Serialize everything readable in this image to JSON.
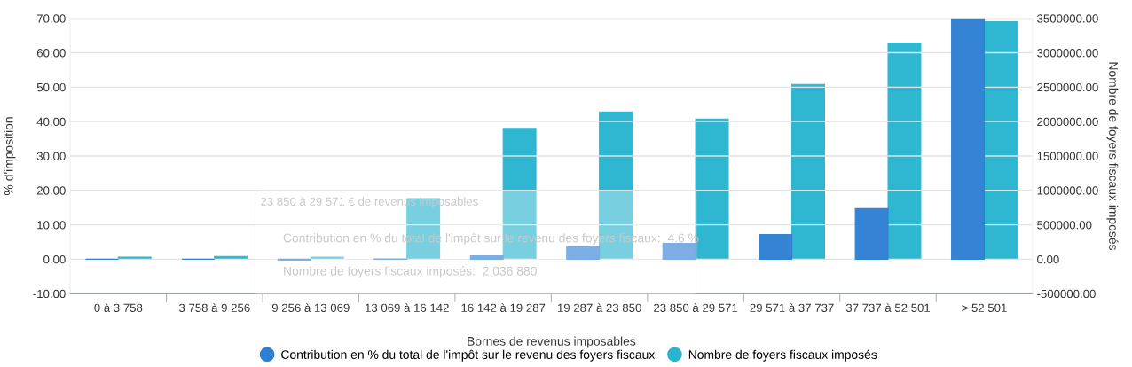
{
  "chart_data": {
    "type": "bar",
    "categories": [
      "0 à 3 758",
      "3 758 à 9 256",
      "9 256 à 13 069",
      "13 069 à 16 142",
      "16 142 à 19 287",
      "19 287 à 23 850",
      "23 850 à 29 571",
      "29 571 à 37 737",
      "37 737 à 52 501",
      "> 52 501"
    ],
    "series": [
      {
        "name": "Contribution en % du total de l'impôt sur le revenu des foyers fiscaux",
        "color": "#2f7fd3",
        "values": [
          0.0,
          0.0,
          -0.3,
          0.1,
          1.0,
          3.6,
          4.6,
          7.2,
          14.7,
          70.0
        ]
      },
      {
        "name": "Nombre de foyers fiscaux imposés",
        "color": "#29b4cf",
        "axis": "y2",
        "values": [
          30000,
          40000,
          30000,
          880000,
          1900000,
          2140000,
          2036880,
          2540000,
          3140000,
          3450000
        ]
      }
    ],
    "xlabel": "Bornes de revenus imposables",
    "ylabel": "% d'imposition",
    "y2label": "Nombre de foyers fiscaux imposés",
    "ylim": [
      -10,
      70
    ],
    "yticks": [
      {
        "value": -10,
        "label": "-10.00"
      },
      {
        "value": 0,
        "label": "0.00"
      },
      {
        "value": 10,
        "label": "10.00"
      },
      {
        "value": 20,
        "label": "20.00"
      },
      {
        "value": 30,
        "label": "30.00"
      },
      {
        "value": 40,
        "label": "40.00"
      },
      {
        "value": 50,
        "label": "50.00"
      },
      {
        "value": 60,
        "label": "60.00"
      },
      {
        "value": 70,
        "label": "70.00"
      }
    ],
    "y2lim": [
      -500000,
      3500000
    ],
    "y2ticks": [
      {
        "value": -500000,
        "label": "-500000.00"
      },
      {
        "value": 0,
        "label": "0.00"
      },
      {
        "value": 500000,
        "label": "500000.00"
      },
      {
        "value": 1000000,
        "label": "1000000.00"
      },
      {
        "value": 1500000,
        "label": "1500000.00"
      },
      {
        "value": 2000000,
        "label": "2000000.00"
      },
      {
        "value": 2500000,
        "label": "2500000.00"
      },
      {
        "value": 3000000,
        "label": "3000000.00"
      },
      {
        "value": 3500000,
        "label": "3500000.00"
      }
    ],
    "grid": "y",
    "legend": "bottom",
    "marker": "circle",
    "annotations": [
      "23 850 à 29 571 € de revenus imposables",
      "Contribution en % du total de l'impôt sur le revenu des foyers fiscaux:  4.6 %",
      "Nombre de foyers fiscaux imposés:  2 036 880"
    ]
  }
}
